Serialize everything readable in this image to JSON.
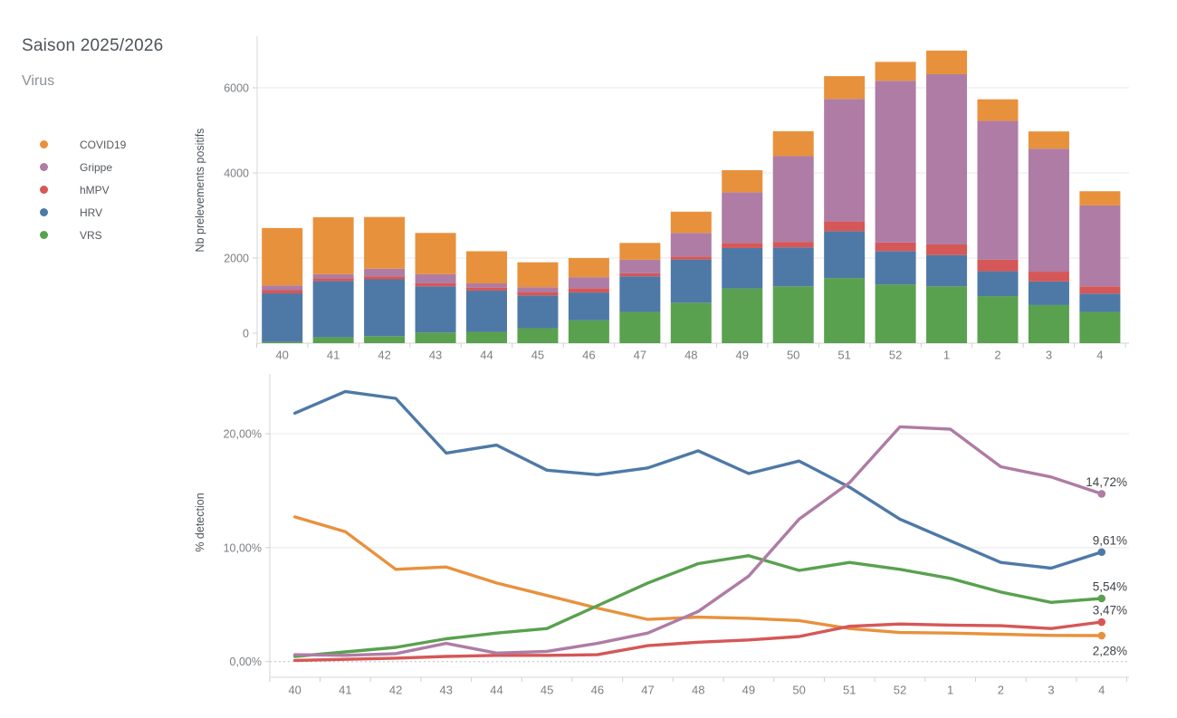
{
  "header": {
    "title": "Saison 2025/2026",
    "legend_title": "Virus"
  },
  "legend": {
    "items": [
      {
        "label": "COVID19",
        "color": "#E8913C"
      },
      {
        "label": "Grippe",
        "color": "#AE7CA4"
      },
      {
        "label": "hMPV",
        "color": "#D65757"
      },
      {
        "label": "HRV",
        "color": "#4E79A7"
      },
      {
        "label": "VRS",
        "color": "#59A14F"
      }
    ]
  },
  "chart_data": [
    {
      "type": "bar",
      "stacked": true,
      "ylabel": "Nb prelevements positifs",
      "categories": [
        "40",
        "41",
        "42",
        "43",
        "44",
        "45",
        "46",
        "47",
        "48",
        "49",
        "50",
        "51",
        "52",
        "1",
        "2",
        "3",
        "4"
      ],
      "series": [
        {
          "name": "VRS",
          "color": "#59A14F",
          "values": [
            30,
            140,
            165,
            250,
            265,
            350,
            535,
            735,
            950,
            1285,
            1335,
            1530,
            1380,
            1335,
            1105,
            895,
            735
          ]
        },
        {
          "name": "HRV",
          "color": "#4E79A7",
          "values": [
            1140,
            1320,
            1335,
            1085,
            970,
            770,
            655,
            835,
            1015,
            950,
            915,
            1100,
            785,
            735,
            585,
            555,
            430
          ]
        },
        {
          "name": "hMPV",
          "color": "#D65757",
          "values": [
            75,
            60,
            70,
            70,
            70,
            85,
            95,
            70,
            70,
            120,
            130,
            230,
            200,
            250,
            270,
            230,
            170
          ]
        },
        {
          "name": "Grippe",
          "color": "#AE7CA4",
          "values": [
            110,
            100,
            180,
            215,
            100,
            110,
            265,
            320,
            555,
            1190,
            2015,
            2880,
            3800,
            4000,
            3265,
            2890,
            1900
          ]
        },
        {
          "name": "COVID19",
          "color": "#E8913C",
          "values": [
            1350,
            1340,
            1215,
            970,
            755,
            585,
            450,
            395,
            500,
            520,
            585,
            535,
            445,
            555,
            505,
            405,
            335
          ]
        }
      ],
      "yticks": [
        {
          "label": "0",
          "value": 0
        },
        {
          "label": "2000",
          "value": 2000
        },
        {
          "label": "4000",
          "value": 4000
        },
        {
          "label": "6000",
          "value": 6000
        }
      ],
      "ylim": [
        0,
        7200
      ],
      "grid": true,
      "legend_position": "left"
    },
    {
      "type": "line",
      "ylabel": "% detection",
      "categories": [
        "40",
        "41",
        "42",
        "43",
        "44",
        "45",
        "46",
        "47",
        "48",
        "49",
        "50",
        "51",
        "52",
        "1",
        "2",
        "3",
        "4"
      ],
      "series": [
        {
          "name": "COVID19",
          "color": "#E8913C",
          "end_label": "2,28%",
          "end_label_position": "below",
          "values": [
            12.7,
            11.4,
            8.1,
            8.3,
            6.9,
            5.8,
            4.7,
            3.7,
            3.9,
            3.8,
            3.6,
            2.9,
            2.55,
            2.5,
            2.4,
            2.3,
            2.28
          ]
        },
        {
          "name": "VRS",
          "color": "#59A14F",
          "end_label": "5,54%",
          "end_label_position": "above",
          "values": [
            0.45,
            0.85,
            1.25,
            2.0,
            2.5,
            2.9,
            4.9,
            6.9,
            8.6,
            9.3,
            8.0,
            8.7,
            8.1,
            7.3,
            6.1,
            5.2,
            5.54
          ]
        },
        {
          "name": "hMPV",
          "color": "#D65757",
          "end_label": "3,47%",
          "end_label_position": "above",
          "values": [
            0.1,
            0.2,
            0.3,
            0.45,
            0.55,
            0.55,
            0.6,
            1.4,
            1.7,
            1.9,
            2.2,
            3.1,
            3.3,
            3.2,
            3.15,
            2.9,
            3.47
          ]
        },
        {
          "name": "HRV",
          "color": "#4E79A7",
          "end_label": "9,61%",
          "end_label_position": "above",
          "values": [
            21.8,
            23.7,
            23.1,
            18.3,
            19.0,
            16.8,
            16.4,
            17.0,
            18.5,
            16.5,
            17.6,
            15.3,
            12.5,
            10.6,
            8.7,
            8.2,
            9.61
          ]
        },
        {
          "name": "Grippe",
          "color": "#AE7CA4",
          "end_label": "14,72%",
          "end_label_position": "above",
          "values": [
            0.6,
            0.55,
            0.7,
            1.6,
            0.75,
            0.9,
            1.6,
            2.5,
            4.4,
            7.5,
            12.5,
            15.7,
            20.6,
            20.4,
            17.1,
            16.2,
            14.72
          ]
        }
      ],
      "yticks": [
        {
          "label": "0,00%",
          "value": 0
        },
        {
          "label": "10,00%",
          "value": 10
        },
        {
          "label": "20,00%",
          "value": 20
        }
      ],
      "ylim": [
        0,
        26
      ],
      "grid": true,
      "zero_line_style": "dotted"
    }
  ]
}
